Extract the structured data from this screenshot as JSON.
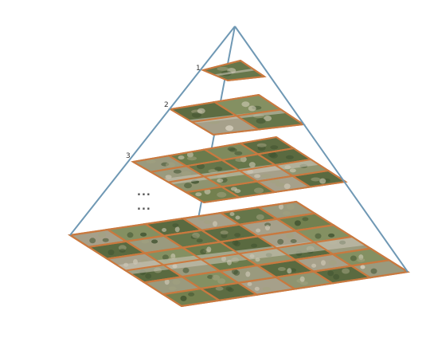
{
  "diagram": {
    "levels": [
      {
        "label": "1",
        "grid": 1
      },
      {
        "label": "2",
        "grid": 2
      },
      {
        "label": "3",
        "grid": 4
      },
      {
        "label": "",
        "grid": 6
      }
    ],
    "ellipsis": [
      "...",
      "..."
    ]
  },
  "colors": {
    "pyramid_edge": "#6f98b4",
    "tile_border": "#c9793f",
    "imagery_base": "#6f7d52"
  }
}
